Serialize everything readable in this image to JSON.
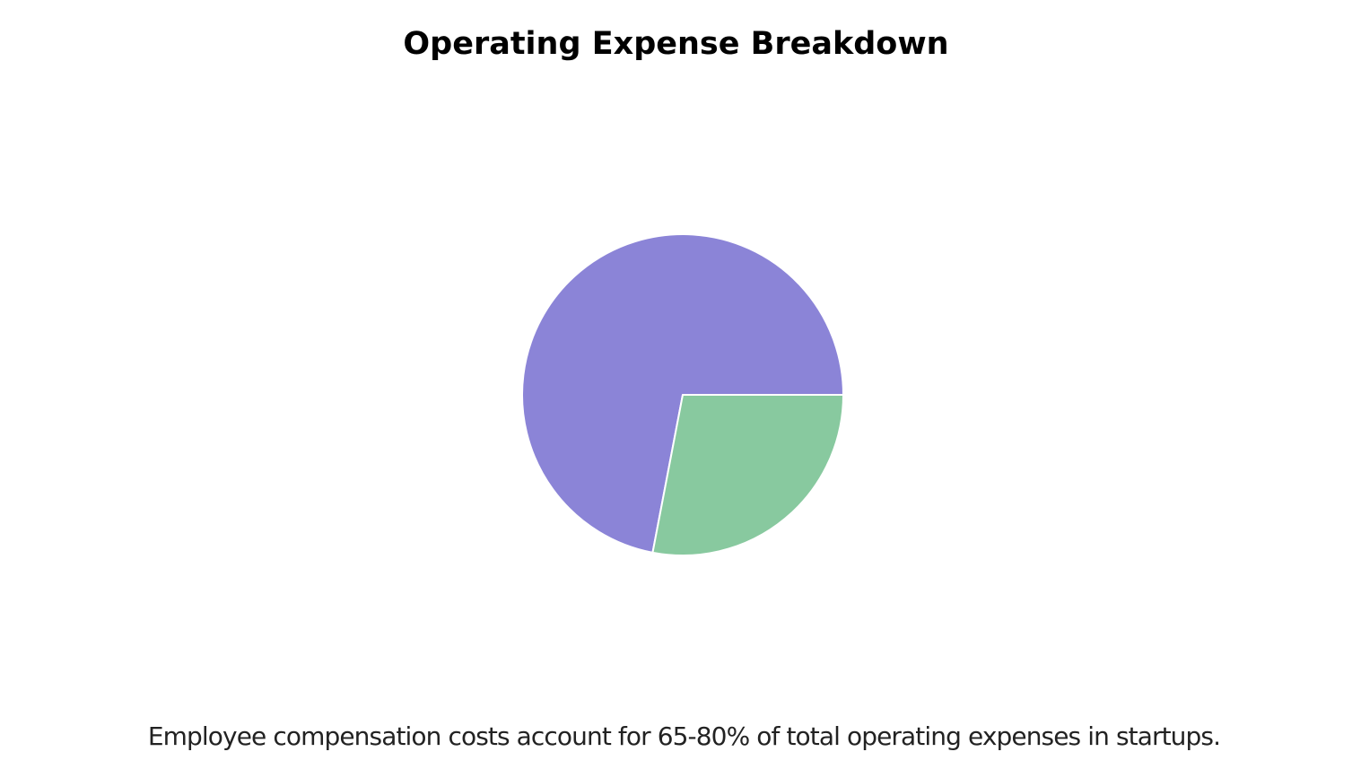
{
  "chart_data": {
    "type": "pie",
    "title": "Operating Expense Breakdown",
    "caption": "Employee compensation costs account for 65-80% of total operating expenses in startups.",
    "slices": [
      {
        "value": 72,
        "color": "#8b84d7"
      },
      {
        "value": 28,
        "color": "#88c99f"
      }
    ],
    "start_angle_deg": 0,
    "direction": "counterclockwise",
    "slice_border_color": "#ffffff",
    "legend": "none"
  }
}
